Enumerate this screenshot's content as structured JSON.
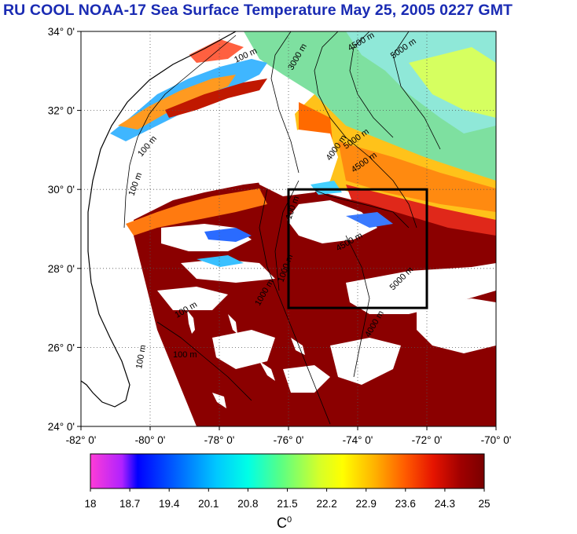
{
  "title": "RU COOL  NOAA-17 Sea Surface Temperature May 25, 2005 0227 GMT",
  "map": {
    "lat_ticks": [
      "34° 0'",
      "32° 0'",
      "30° 0'",
      "28° 0'",
      "26° 0'",
      "24° 0'"
    ],
    "lon_ticks": [
      "-82° 0'",
      "-80° 0'",
      "-78° 0'",
      "-76° 0'",
      "-74° 0'",
      "-72° 0'",
      "-70° 0'"
    ],
    "lat_range": [
      24,
      34
    ],
    "lon_range": [
      -82,
      -70
    ],
    "study_box": {
      "lon": [
        -76,
        -72
      ],
      "lat": [
        27,
        30
      ]
    },
    "contour_labels": [
      "100 m",
      "3000 m",
      "4500 m",
      "5000 m",
      "5000 m",
      "4000 m",
      "4500 m",
      "100 m",
      "100 m",
      "100 m",
      "100 m",
      "100 m",
      "4500 m",
      "5000 m",
      "4000 m",
      "1000 m",
      "1000 m",
      "100 m"
    ]
  },
  "colorbar": {
    "ticks": [
      "18",
      "18.7",
      "19.4",
      "20.1",
      "20.8",
      "21.5",
      "22.2",
      "22.9",
      "23.6",
      "24.3",
      "25"
    ],
    "min": 18,
    "max": 25,
    "unit": "C",
    "unit_sup": "0",
    "colors": [
      "#ff3cd6",
      "#b022ff",
      "#0000ff",
      "#0064ff",
      "#00c8ff",
      "#00ffe6",
      "#55ff88",
      "#d4ff2a",
      "#ffff00",
      "#ffb400",
      "#ff5a00",
      "#e61400",
      "#a00000",
      "#7a0000"
    ]
  },
  "colors": {
    "title": "#1a2bb3",
    "land": "#ffffff",
    "cloud": "#ffffff",
    "warm": "#8b0000"
  }
}
